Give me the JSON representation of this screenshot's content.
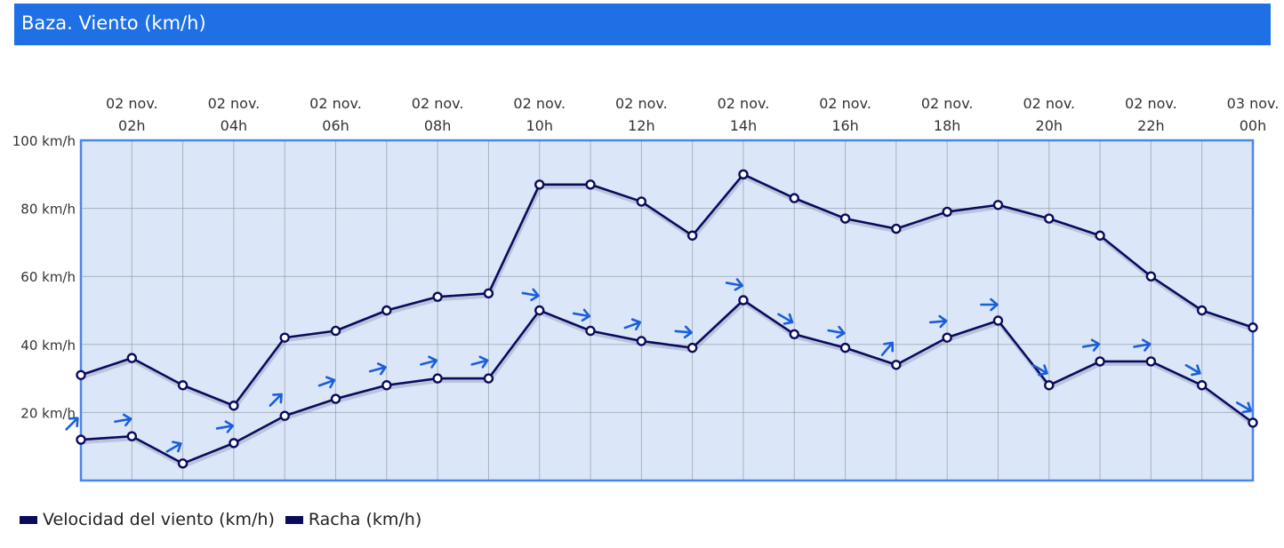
{
  "header": {
    "title": "Baza. Viento (km/h)"
  },
  "chart_data": {
    "type": "line",
    "categories": [
      "02 nov. 01h",
      "02 nov. 02h",
      "02 nov. 03h",
      "02 nov. 04h",
      "02 nov. 05h",
      "02 nov. 06h",
      "02 nov. 07h",
      "02 nov. 08h",
      "02 nov. 09h",
      "02 nov. 10h",
      "02 nov. 11h",
      "02 nov. 12h",
      "02 nov. 13h",
      "02 nov. 14h",
      "02 nov. 15h",
      "02 nov. 16h",
      "02 nov. 17h",
      "02 nov. 18h",
      "02 nov. 19h",
      "02 nov. 20h",
      "02 nov. 21h",
      "02 nov. 22h",
      "02 nov. 23h",
      "03 nov. 00h"
    ],
    "x_tick_labels": [
      {
        "index": 1,
        "line1": "02 nov.",
        "line2": "02h"
      },
      {
        "index": 3,
        "line1": "02 nov.",
        "line2": "04h"
      },
      {
        "index": 5,
        "line1": "02 nov.",
        "line2": "06h"
      },
      {
        "index": 7,
        "line1": "02 nov.",
        "line2": "08h"
      },
      {
        "index": 9,
        "line1": "02 nov.",
        "line2": "10h"
      },
      {
        "index": 11,
        "line1": "02 nov.",
        "line2": "12h"
      },
      {
        "index": 13,
        "line1": "02 nov.",
        "line2": "14h"
      },
      {
        "index": 15,
        "line1": "02 nov.",
        "line2": "16h"
      },
      {
        "index": 17,
        "line1": "02 nov.",
        "line2": "18h"
      },
      {
        "index": 19,
        "line1": "02 nov.",
        "line2": "20h"
      },
      {
        "index": 21,
        "line1": "02 nov.",
        "line2": "22h"
      },
      {
        "index": 23,
        "line1": "03 nov.",
        "line2": "00h"
      }
    ],
    "y_tick_labels": [
      {
        "value": 100,
        "label": "100 km/h"
      },
      {
        "value": 80,
        "label": "80 km/h"
      },
      {
        "value": 60,
        "label": "60 km/h"
      },
      {
        "value": 40,
        "label": "40 km/h"
      },
      {
        "value": 20,
        "label": "20 km/h"
      }
    ],
    "ylim": [
      0,
      100
    ],
    "grid": true,
    "series": [
      {
        "name": "Velocidad del viento (km/h)",
        "color": "#0b0b5e",
        "values": [
          12,
          13,
          5,
          11,
          19,
          24,
          28,
          30,
          30,
          50,
          44,
          41,
          39,
          53,
          43,
          39,
          34,
          42,
          47,
          28,
          35,
          35,
          28,
          17
        ],
        "wind_direction_deg": [
          225,
          260,
          240,
          260,
          225,
          250,
          255,
          255,
          255,
          280,
          280,
          250,
          275,
          280,
          300,
          280,
          220,
          265,
          270,
          300,
          260,
          260,
          300,
          300
        ]
      },
      {
        "name": "Racha (km/h)",
        "color": "#0b0b5e",
        "values": [
          31,
          36,
          28,
          22,
          42,
          44,
          50,
          54,
          55,
          87,
          87,
          82,
          72,
          90,
          83,
          77,
          74,
          79,
          81,
          77,
          72,
          60,
          50,
          45
        ]
      }
    ],
    "legend_position": "bottom-left",
    "colors": {
      "plot_bg": "#dbe7f8",
      "plot_border": "#4a86e8",
      "arrow": "#1a5fd8",
      "grid": "#8a8f99"
    }
  },
  "legend": {
    "items": [
      {
        "label": "Velocidad del viento (km/h)"
      },
      {
        "label": "Racha (km/h)"
      }
    ]
  }
}
